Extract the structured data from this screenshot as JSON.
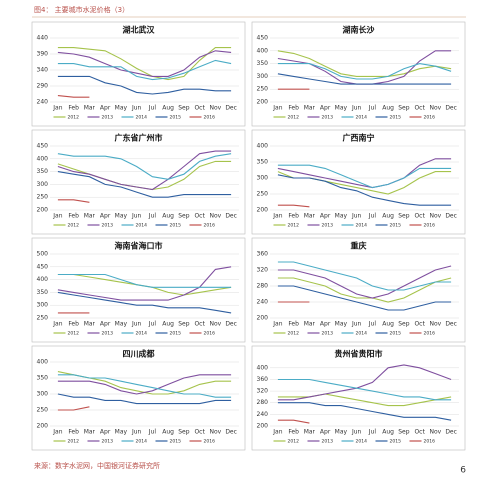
{
  "header": {
    "title": "图4：  主要城市水泥价格（3）"
  },
  "footer": {
    "source": "来源：数字水泥网，中国银河证券研究所",
    "page": "6"
  },
  "chart_data": [
    {
      "type": "line",
      "title": "湖北武汉",
      "categories": [
        "Jan",
        "Feb",
        "Mar",
        "Apr",
        "May",
        "Jun",
        "Jul",
        "Aug",
        "Sep",
        "Oct",
        "Nov",
        "Dec"
      ],
      "ylim": [
        240,
        440
      ],
      "yticks": [
        240,
        290,
        340,
        390,
        440
      ],
      "grid": true,
      "series": [
        {
          "name": "2012",
          "color": "#a6c34c",
          "values": [
            410,
            410,
            405,
            400,
            375,
            345,
            320,
            310,
            320,
            370,
            410,
            410
          ]
        },
        {
          "name": "2013",
          "color": "#7f4f9f",
          "values": [
            395,
            390,
            380,
            360,
            340,
            330,
            320,
            320,
            340,
            380,
            400,
            395
          ]
        },
        {
          "name": "2014",
          "color": "#4bacc6",
          "values": [
            360,
            360,
            350,
            350,
            350,
            320,
            310,
            315,
            330,
            350,
            370,
            360
          ]
        },
        {
          "name": "2015",
          "color": "#2f5fa0",
          "values": [
            320,
            320,
            320,
            300,
            290,
            270,
            265,
            270,
            280,
            280,
            275,
            275
          ]
        },
        {
          "name": "2016",
          "color": "#c0504d",
          "values": [
            260,
            255,
            255,
            null,
            null,
            null,
            null,
            null,
            null,
            null,
            null,
            null
          ]
        }
      ]
    },
    {
      "type": "line",
      "title": "湖南长沙",
      "categories": [
        "Jan",
        "Feb",
        "Mar",
        "Apr",
        "May",
        "Jun",
        "Jul",
        "Aug",
        "Sep",
        "Oct",
        "Nov",
        "Dec"
      ],
      "ylim": [
        200,
        450
      ],
      "yticks": [
        200,
        250,
        300,
        350,
        400,
        450
      ],
      "grid": true,
      "series": [
        {
          "name": "2012",
          "color": "#a6c34c",
          "values": [
            400,
            390,
            370,
            340,
            310,
            300,
            300,
            300,
            310,
            330,
            340,
            330
          ]
        },
        {
          "name": "2013",
          "color": "#7f4f9f",
          "values": [
            370,
            360,
            350,
            320,
            280,
            270,
            270,
            280,
            300,
            360,
            400,
            400
          ]
        },
        {
          "name": "2014",
          "color": "#4bacc6",
          "values": [
            350,
            350,
            350,
            330,
            300,
            290,
            290,
            300,
            330,
            350,
            340,
            320
          ]
        },
        {
          "name": "2015",
          "color": "#2f5fa0",
          "values": [
            310,
            300,
            290,
            280,
            270,
            270,
            270,
            270,
            270,
            270,
            270,
            270
          ]
        },
        {
          "name": "2016",
          "color": "#c0504d",
          "values": [
            250,
            250,
            250,
            null,
            null,
            null,
            null,
            null,
            null,
            null,
            null,
            null
          ]
        }
      ]
    },
    {
      "type": "line",
      "title": "广东省广州市",
      "categories": [
        "Jan",
        "Feb",
        "Mar",
        "Apr",
        "May",
        "Jun",
        "Jul",
        "Aug",
        "Sep",
        "Oct",
        "Nov",
        "Dec"
      ],
      "ylim": [
        200,
        450
      ],
      "yticks": [
        200,
        250,
        300,
        350,
        400,
        450
      ],
      "grid": true,
      "series": [
        {
          "name": "2012",
          "color": "#a6c34c",
          "values": [
            380,
            360,
            340,
            320,
            300,
            290,
            280,
            290,
            320,
            370,
            390,
            390
          ]
        },
        {
          "name": "2013",
          "color": "#7f4f9f",
          "values": [
            370,
            350,
            340,
            320,
            300,
            290,
            280,
            320,
            370,
            420,
            430,
            430
          ]
        },
        {
          "name": "2014",
          "color": "#4bacc6",
          "values": [
            420,
            410,
            410,
            410,
            400,
            370,
            330,
            320,
            340,
            390,
            410,
            420
          ]
        },
        {
          "name": "2015",
          "color": "#2f5fa0",
          "values": [
            350,
            340,
            330,
            300,
            290,
            270,
            250,
            250,
            260,
            260,
            260,
            260
          ]
        },
        {
          "name": "2016",
          "color": "#c0504d",
          "values": [
            240,
            240,
            230,
            null,
            null,
            null,
            null,
            null,
            null,
            null,
            null,
            null
          ]
        }
      ]
    },
    {
      "type": "line",
      "title": "广西南宁",
      "categories": [
        "Jan",
        "Feb",
        "Mar",
        "Apr",
        "May",
        "Jun",
        "Jul",
        "Aug",
        "Sep",
        "Oct",
        "Nov",
        "Dec"
      ],
      "ylim": [
        200,
        400
      ],
      "yticks": [
        200,
        250,
        300,
        350,
        400
      ],
      "grid": true,
      "series": [
        {
          "name": "2012",
          "color": "#a6c34c",
          "values": [
            320,
            300,
            300,
            290,
            280,
            270,
            260,
            250,
            270,
            300,
            320,
            320
          ]
        },
        {
          "name": "2013",
          "color": "#7f4f9f",
          "values": [
            330,
            320,
            310,
            300,
            290,
            280,
            270,
            280,
            300,
            340,
            360,
            360
          ]
        },
        {
          "name": "2014",
          "color": "#4bacc6",
          "values": [
            340,
            340,
            340,
            330,
            310,
            290,
            270,
            280,
            300,
            330,
            330,
            330
          ]
        },
        {
          "name": "2015",
          "color": "#2f5fa0",
          "values": [
            310,
            300,
            300,
            290,
            270,
            260,
            240,
            230,
            220,
            215,
            215,
            215
          ]
        },
        {
          "name": "2016",
          "color": "#c0504d",
          "values": [
            215,
            215,
            210,
            null,
            null,
            null,
            null,
            null,
            null,
            null,
            null,
            null
          ]
        }
      ]
    },
    {
      "type": "line",
      "title": "海南省海口市",
      "categories": [
        "Jan",
        "Feb",
        "Mar",
        "Apr",
        "May",
        "Jun",
        "Jul",
        "Aug",
        "Sep",
        "Oct",
        "Nov",
        "Dec"
      ],
      "ylim": [
        250,
        500
      ],
      "yticks": [
        250,
        300,
        350,
        400,
        450,
        500
      ],
      "grid": true,
      "series": [
        {
          "name": "2012",
          "color": "#a6c34c",
          "values": [
            420,
            420,
            410,
            400,
            390,
            380,
            370,
            350,
            340,
            350,
            360,
            370
          ]
        },
        {
          "name": "2013",
          "color": "#7f4f9f",
          "values": [
            360,
            350,
            340,
            330,
            320,
            320,
            320,
            320,
            340,
            370,
            440,
            450
          ]
        },
        {
          "name": "2014",
          "color": "#4bacc6",
          "values": [
            420,
            420,
            420,
            420,
            400,
            380,
            370,
            370,
            370,
            370,
            370,
            370
          ]
        },
        {
          "name": "2015",
          "color": "#2f5fa0",
          "values": [
            350,
            340,
            330,
            320,
            310,
            300,
            300,
            290,
            290,
            290,
            280,
            270
          ]
        },
        {
          "name": "2016",
          "color": "#c0504d",
          "values": [
            270,
            270,
            270,
            null,
            null,
            null,
            null,
            null,
            null,
            null,
            null,
            null
          ]
        }
      ]
    },
    {
      "type": "line",
      "title": "重庆",
      "categories": [
        "Jan",
        "Feb",
        "Mar",
        "Apr",
        "May",
        "Jun",
        "Jul",
        "Aug",
        "Sep",
        "Oct",
        "Nov",
        "Dec"
      ],
      "ylim": [
        200,
        360
      ],
      "yticks": [
        200,
        240,
        280,
        320,
        360
      ],
      "grid": true,
      "series": [
        {
          "name": "2012",
          "color": "#a6c34c",
          "values": [
            300,
            300,
            290,
            280,
            260,
            250,
            250,
            240,
            250,
            270,
            290,
            300
          ]
        },
        {
          "name": "2013",
          "color": "#7f4f9f",
          "values": [
            320,
            320,
            310,
            300,
            280,
            260,
            250,
            260,
            280,
            300,
            320,
            330
          ]
        },
        {
          "name": "2014",
          "color": "#4bacc6",
          "values": [
            340,
            340,
            330,
            320,
            310,
            300,
            280,
            270,
            270,
            280,
            290,
            290
          ]
        },
        {
          "name": "2015",
          "color": "#2f5fa0",
          "values": [
            280,
            280,
            270,
            260,
            250,
            240,
            230,
            220,
            220,
            230,
            240,
            240
          ]
        },
        {
          "name": "2016",
          "color": "#c0504d",
          "values": [
            240,
            240,
            240,
            null,
            null,
            null,
            null,
            null,
            null,
            null,
            null,
            null
          ]
        }
      ]
    },
    {
      "type": "line",
      "title": "四川成都",
      "categories": [
        "Jan",
        "Feb",
        "Mar",
        "Apr",
        "May",
        "Jun",
        "Jul",
        "Aug",
        "Sep",
        "Oct",
        "Nov",
        "Dec"
      ],
      "ylim": [
        200,
        400
      ],
      "yticks": [
        200,
        250,
        300,
        350,
        400
      ],
      "grid": true,
      "series": [
        {
          "name": "2012",
          "color": "#a6c34c",
          "values": [
            370,
            360,
            350,
            340,
            320,
            310,
            300,
            300,
            310,
            330,
            340,
            340
          ]
        },
        {
          "name": "2013",
          "color": "#7f4f9f",
          "values": [
            340,
            340,
            340,
            330,
            310,
            300,
            310,
            330,
            350,
            360,
            360,
            360
          ]
        },
        {
          "name": "2014",
          "color": "#4bacc6",
          "values": [
            360,
            360,
            350,
            350,
            340,
            330,
            320,
            310,
            300,
            300,
            290,
            290
          ]
        },
        {
          "name": "2015",
          "color": "#2f5fa0",
          "values": [
            300,
            290,
            290,
            280,
            280,
            270,
            270,
            270,
            270,
            270,
            280,
            280
          ]
        },
        {
          "name": "2016",
          "color": "#c0504d",
          "values": [
            250,
            250,
            260,
            null,
            null,
            null,
            null,
            null,
            null,
            null,
            null,
            null
          ]
        }
      ]
    },
    {
      "type": "line",
      "title": "贵州省贵阳市",
      "categories": [
        "Jan",
        "Feb",
        "Mar",
        "Apr",
        "May",
        "Jun",
        "Jul",
        "Aug",
        "Sep",
        "Oct",
        "Nov",
        "Dec"
      ],
      "ylim": [
        200,
        420
      ],
      "yticks": [
        200,
        240,
        280,
        320,
        360,
        400
      ],
      "grid": true,
      "series": [
        {
          "name": "2012",
          "color": "#a6c34c",
          "values": [
            300,
            300,
            300,
            310,
            300,
            290,
            280,
            270,
            270,
            280,
            290,
            300
          ]
        },
        {
          "name": "2013",
          "color": "#7f4f9f",
          "values": [
            290,
            290,
            300,
            310,
            320,
            330,
            350,
            400,
            410,
            400,
            380,
            360
          ]
        },
        {
          "name": "2014",
          "color": "#4bacc6",
          "values": [
            360,
            360,
            360,
            350,
            340,
            330,
            320,
            310,
            300,
            300,
            290,
            290
          ]
        },
        {
          "name": "2015",
          "color": "#2f5fa0",
          "values": [
            280,
            280,
            280,
            270,
            270,
            260,
            250,
            240,
            230,
            230,
            230,
            220
          ]
        },
        {
          "name": "2016",
          "color": "#c0504d",
          "values": [
            220,
            220,
            210,
            null,
            null,
            null,
            null,
            null,
            null,
            null,
            null,
            null
          ]
        }
      ]
    }
  ]
}
